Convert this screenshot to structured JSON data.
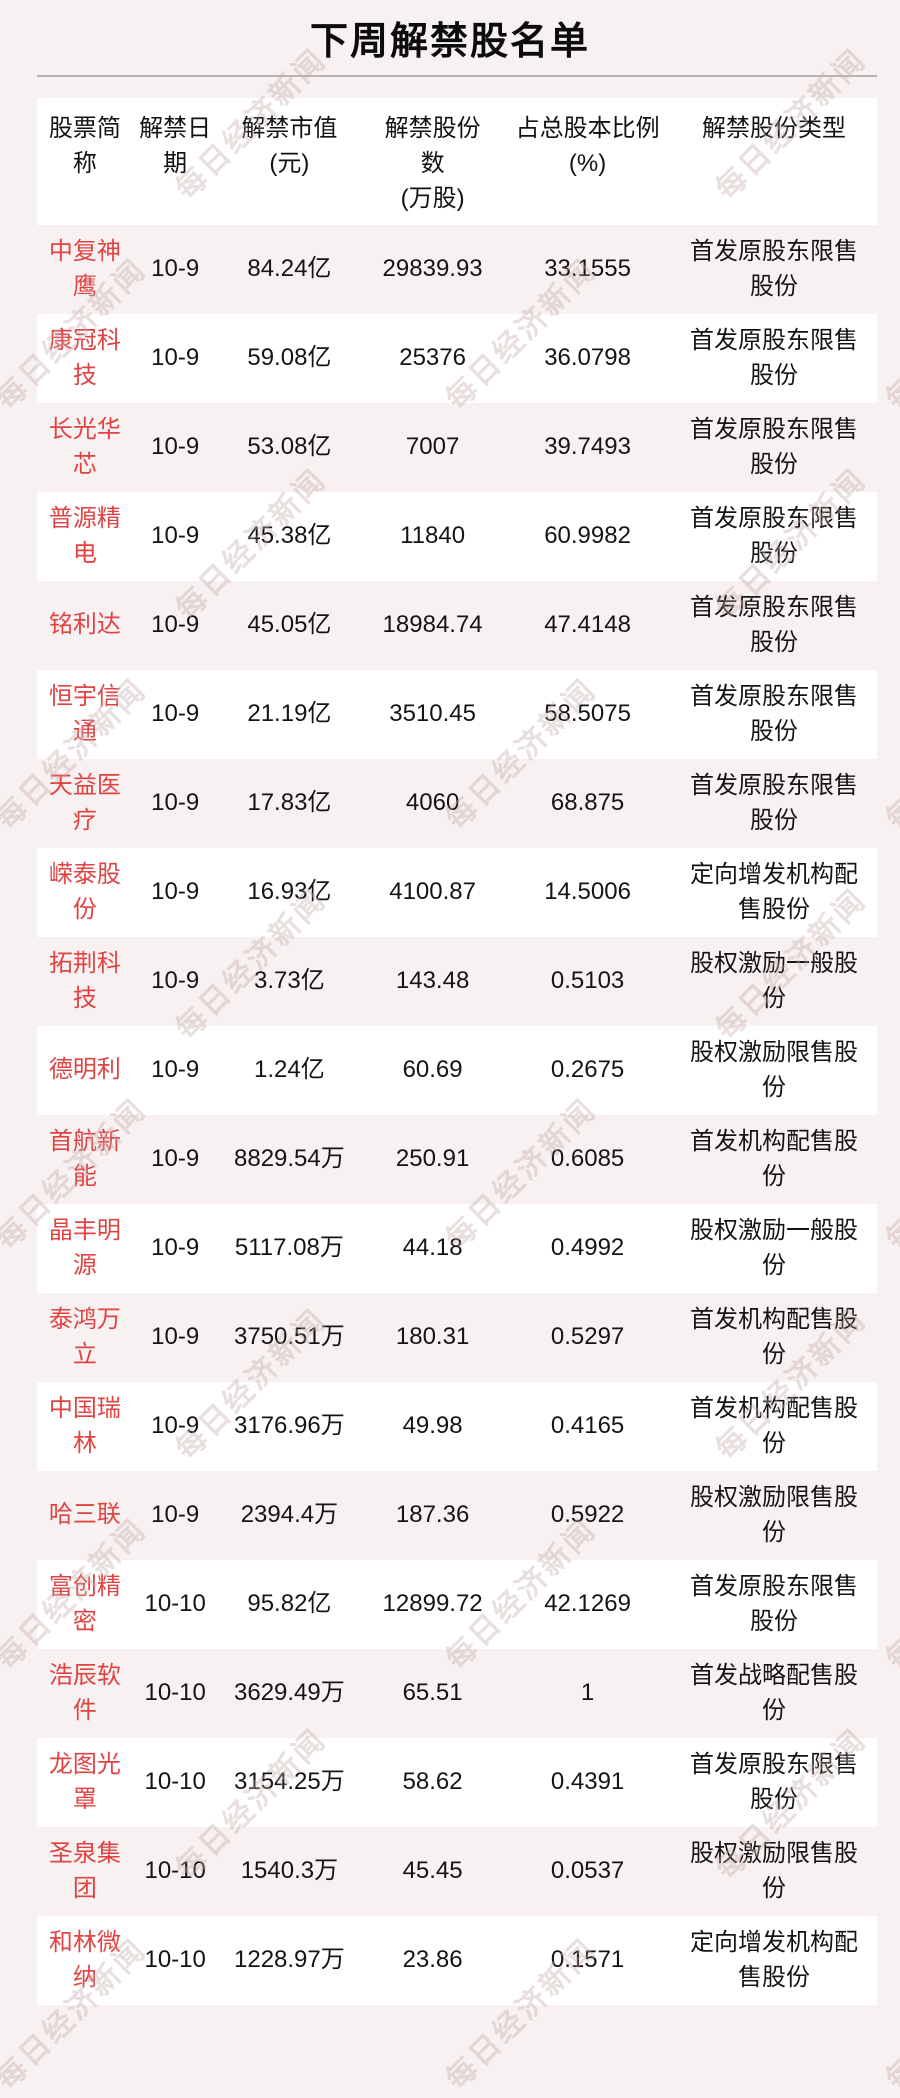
{
  "title": "下周解禁股名单",
  "watermark_text": "每日经济新闻",
  "colors": {
    "page_background": "#f8f1f1",
    "row_white": "#ffffff",
    "stock_name_red": "#e14343",
    "divider_gray": "#b9b3b3",
    "body_text": "#141414"
  },
  "table": {
    "headers": [
      {
        "label": "股票简\n称"
      },
      {
        "label": "解禁日\n期"
      },
      {
        "label": "解禁市值\n(元)"
      },
      {
        "label": "解禁股份\n数\n(万股)"
      },
      {
        "label": "占总股本比例\n(%)"
      },
      {
        "label": "解禁股份类型"
      }
    ],
    "rows": [
      {
        "name": "中复神鹰",
        "date": "10-9",
        "market_value": "84.24亿",
        "shares_wan": "29839.93",
        "pct_of_total": "33.1555",
        "type": "首发原股东限售股份"
      },
      {
        "name": "康冠科技",
        "date": "10-9",
        "market_value": "59.08亿",
        "shares_wan": "25376",
        "pct_of_total": "36.0798",
        "type": "首发原股东限售股份"
      },
      {
        "name": "长光华芯",
        "date": "10-9",
        "market_value": "53.08亿",
        "shares_wan": "7007",
        "pct_of_total": "39.7493",
        "type": "首发原股东限售股份"
      },
      {
        "name": "普源精电",
        "date": "10-9",
        "market_value": "45.38亿",
        "shares_wan": "11840",
        "pct_of_total": "60.9982",
        "type": "首发原股东限售股份"
      },
      {
        "name": "铭利达",
        "date": "10-9",
        "market_value": "45.05亿",
        "shares_wan": "18984.74",
        "pct_of_total": "47.4148",
        "type": "首发原股东限售股份"
      },
      {
        "name": "恒宇信通",
        "date": "10-9",
        "market_value": "21.19亿",
        "shares_wan": "3510.45",
        "pct_of_total": "58.5075",
        "type": "首发原股东限售股份"
      },
      {
        "name": "天益医疗",
        "date": "10-9",
        "market_value": "17.83亿",
        "shares_wan": "4060",
        "pct_of_total": "68.875",
        "type": "首发原股东限售股份"
      },
      {
        "name": "嵘泰股份",
        "date": "10-9",
        "market_value": "16.93亿",
        "shares_wan": "4100.87",
        "pct_of_total": "14.5006",
        "type": "定向增发机构配售股份"
      },
      {
        "name": "拓荆科技",
        "date": "10-9",
        "market_value": "3.73亿",
        "shares_wan": "143.48",
        "pct_of_total": "0.5103",
        "type": "股权激励一般股份"
      },
      {
        "name": "德明利",
        "date": "10-9",
        "market_value": "1.24亿",
        "shares_wan": "60.69",
        "pct_of_total": "0.2675",
        "type": "股权激励限售股份"
      },
      {
        "name": "首航新能",
        "date": "10-9",
        "market_value": "8829.54万",
        "shares_wan": "250.91",
        "pct_of_total": "0.6085",
        "type": "首发机构配售股份"
      },
      {
        "name": "晶丰明源",
        "date": "10-9",
        "market_value": "5117.08万",
        "shares_wan": "44.18",
        "pct_of_total": "0.4992",
        "type": "股权激励一般股份"
      },
      {
        "name": "泰鸿万立",
        "date": "10-9",
        "market_value": "3750.51万",
        "shares_wan": "180.31",
        "pct_of_total": "0.5297",
        "type": "首发机构配售股份"
      },
      {
        "name": "中国瑞林",
        "date": "10-9",
        "market_value": "3176.96万",
        "shares_wan": "49.98",
        "pct_of_total": "0.4165",
        "type": "首发机构配售股份"
      },
      {
        "name": "哈三联",
        "date": "10-9",
        "market_value": "2394.4万",
        "shares_wan": "187.36",
        "pct_of_total": "0.5922",
        "type": "股权激励限售股份"
      },
      {
        "name": "富创精密",
        "date": "10-10",
        "market_value": "95.82亿",
        "shares_wan": "12899.72",
        "pct_of_total": "42.1269",
        "type": "首发原股东限售股份"
      },
      {
        "name": "浩辰软件",
        "date": "10-10",
        "market_value": "3629.49万",
        "shares_wan": "65.51",
        "pct_of_total": "1",
        "type": "首发战略配售股份"
      },
      {
        "name": "龙图光罩",
        "date": "10-10",
        "market_value": "3154.25万",
        "shares_wan": "58.62",
        "pct_of_total": "0.4391",
        "type": "首发原股东限售股份"
      },
      {
        "name": "圣泉集团",
        "date": "10-10",
        "market_value": "1540.3万",
        "shares_wan": "45.45",
        "pct_of_total": "0.0537",
        "type": "股权激励限售股份"
      },
      {
        "name": "和林微纳",
        "date": "10-10",
        "market_value": "1228.97万",
        "shares_wan": "23.86",
        "pct_of_total": "0.1571",
        "type": "定向增发机构配售股份"
      }
    ]
  }
}
